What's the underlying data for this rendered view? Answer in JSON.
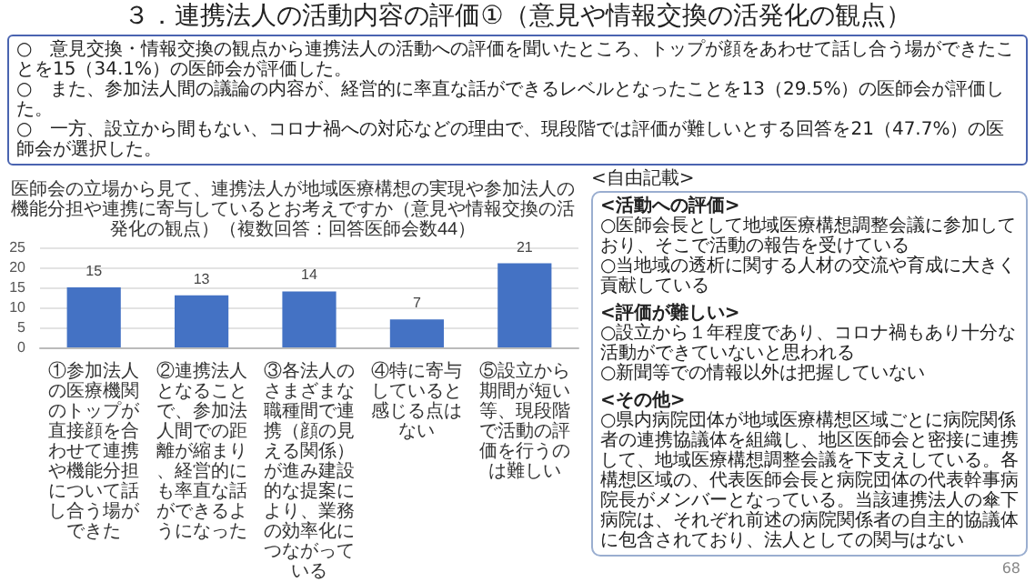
{
  "chart_data": {
    "type": "bar",
    "title": "医師会の立場から見て、連携法人が地域医療構想の実現や参加法人の機能分担や連携に寄与しているとお考えですか（意見や情報交換の活発化の観点）（複数回答：回答医師会数44）",
    "categories": [
      "①参加法人の医療機関のトップが直接顔を合わせて連携や機能分担について話し合う場ができた",
      "②連携法人となることで、参加法人間での距離が縮まり、経営的にも率直な話ができるようになった",
      "③各法人のさまざまな職種間で連携（顔の見える関係）が進み建設的な提案により、業務の効率化につながっている",
      "④特に寄与していると感じる点はない",
      "⑤設立から期間が短い等、現段階で活動の評価を行うのは難しい"
    ],
    "values": [
      15,
      13,
      14,
      7,
      21
    ],
    "color": "#4472c4",
    "ylim": [
      0,
      25
    ],
    "yticks": [
      0,
      5,
      10,
      15,
      20,
      25
    ],
    "grid": "y",
    "data_labels": true,
    "annotations": [
      "３．連携法人の活動内容の評価①（意見や情報交換の活発化の観点）",
      "○　意見交換・情報交換の観点から連携法人の活動への評価を聞いたところ、トップが顔をあわせて話し合う場ができたことを15（34.1%）の医師会が評価した。",
      "○　また、参加法人間の議論の内容が、経営的に率直な話ができるレベルとなったことを13（29.5%）の医師会が評価した。",
      "○　一方、設立から間もない、コロナ禍への対応などの理由で、現段階では評価が難しいとする回答を21（47.7%）の医師会が選択した。",
      "<自由記載>",
      "<活動への評価>",
      "○医師会長として地域医療構想調整会議に参加しており、そこで活動の報告を受けている",
      "○当地域の透析に関する人材の交流や育成に大きく貢献している",
      "<評価が難しい>",
      "○設立から１年程度であり、コロナ禍もあり十分な活動ができていないと思われる",
      "○新聞等での情報以外は把握していない",
      "<その他>",
      "○県内病院団体が地域医療構想区域ごとに病院関係者の連携協議体を組織し、地区医師会と密接に連携して、地域医療構想調整会議を下支えしている。各構想区域の、代表医師会長と病院団体の代表幹事病院長がメンバーとなっている。当該連携法人の傘下病院は、それぞれ前述の病院関係者の自主的協議体に包含されており、法人としての関与はない",
      "68"
    ]
  }
}
